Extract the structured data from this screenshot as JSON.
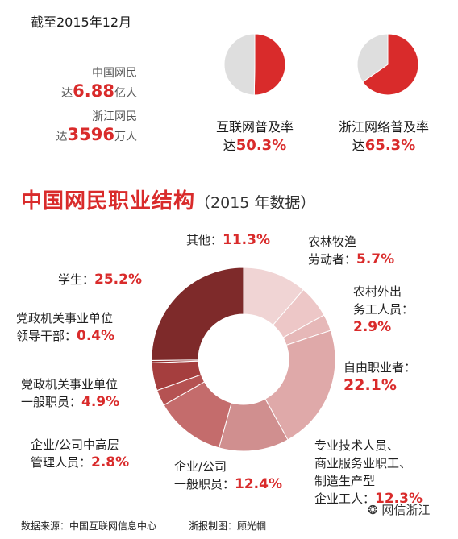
{
  "header": {
    "date_text": "截至2015年12月",
    "china_netizens": {
      "label": "中国网民",
      "prefix": "达",
      "value": "6.88",
      "unit": "亿人"
    },
    "zhejiang_netizens": {
      "label": "浙江网民",
      "prefix": "达",
      "value": "3596",
      "unit": "万人"
    }
  },
  "rates": [
    {
      "line1": "互联网普及率",
      "prefix": "达",
      "value_text": "50.3%",
      "value": 50.3
    },
    {
      "line1": "浙江网络普及率",
      "prefix": "达",
      "value_text": "65.3%",
      "value": 65.3
    }
  ],
  "title": {
    "main": "中国网民职业结构",
    "sub": "（2015 年数据）"
  },
  "labels": {
    "other": {
      "l1": "其他：",
      "v": "11.3%"
    },
    "farm": {
      "l1": "农林牧渔",
      "l2": "劳动者：",
      "v": "5.7%"
    },
    "migrant": {
      "l1": "农村外出",
      "l2": "务工人员：",
      "v": "2.9%"
    },
    "freelance": {
      "l1": "自由职业者：",
      "v": "22.1%"
    },
    "professional": {
      "l1": "专业技术人员、",
      "l2": "商业服务业职工、",
      "l3": "制造生产型",
      "l4": "企业工人：",
      "v": "12.3%"
    },
    "company_staff": {
      "l1": "企业/公司",
      "l2": "一般职员：",
      "v": "12.4%"
    },
    "company_mgr": {
      "l1": "企业/公司中高层",
      "l2": "管理人员：",
      "v": "2.8%"
    },
    "gov_staff": {
      "l1": "党政机关事业单位",
      "l2": "一般职员：",
      "v": "4.9%"
    },
    "gov_leader": {
      "l1": "党政机关事业单位",
      "l2": "领导干部：",
      "v": "0.4%"
    },
    "student": {
      "l1": "学生：",
      "v": "25.2%"
    }
  },
  "chart_data": [
    {
      "type": "pie",
      "title": "互联网普及率",
      "slices": [
        {
          "value": 50.3,
          "color": "#d92b2b"
        },
        {
          "value": 49.7,
          "color": "#dedede"
        }
      ]
    },
    {
      "type": "pie",
      "title": "浙江网络普及率",
      "slices": [
        {
          "value": 65.3,
          "color": "#d92b2b"
        },
        {
          "value": 34.7,
          "color": "#dedede"
        }
      ]
    },
    {
      "type": "pie",
      "title": "中国网民职业结构（2015 年数据）",
      "slices": [
        {
          "name": "其他",
          "value": 11.3,
          "color": "#f0d4d4"
        },
        {
          "name": "农林牧渔劳动者",
          "value": 5.7,
          "color": "#edc7c7"
        },
        {
          "name": "农村外出务工人员",
          "value": 2.9,
          "color": "#e6b8b8"
        },
        {
          "name": "自由职业者",
          "value": 22.1,
          "color": "#dfa9a9"
        },
        {
          "name": "专业技术人员、商业服务业职工、制造生产型企业工人",
          "value": 12.3,
          "color": "#d08f8f"
        },
        {
          "name": "企业/公司一般职员",
          "value": 12.4,
          "color": "#c46c6c"
        },
        {
          "name": "企业/公司中高层管理人员",
          "value": 2.8,
          "color": "#b55252"
        },
        {
          "name": "党政机关事业单位一般职员",
          "value": 4.9,
          "color": "#a53e3e"
        },
        {
          "name": "党政机关事业单位领导干部",
          "value": 0.4,
          "color": "#933232"
        },
        {
          "name": "学生",
          "value": 25.2,
          "color": "#7e2a2a"
        }
      ]
    }
  ],
  "footer": {
    "source": "数据来源：中国互联网信息中心",
    "credit": "浙报制图：顾光帼",
    "wechat": "网信浙江"
  }
}
